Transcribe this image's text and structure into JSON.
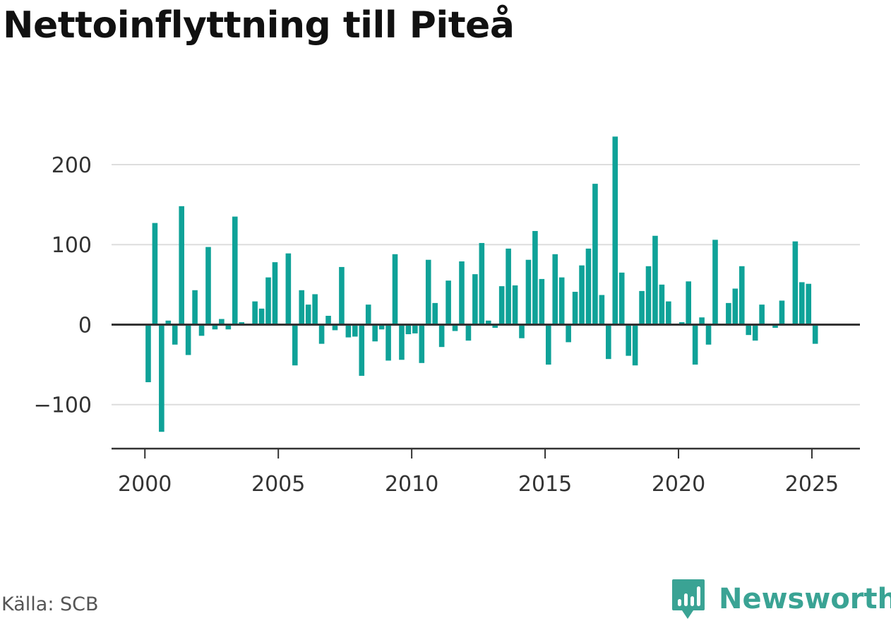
{
  "title": "Nettoinflyttning till Piteå",
  "source": "Källa: SCB",
  "brand": {
    "name": "Newsworthy",
    "logo_icon": "newsworthy-chart-logo-icon",
    "color": "#3aa394"
  },
  "colors": {
    "bar": "#0fa298",
    "grid": "#dddddd",
    "zero_line": "#333333",
    "axis": "#333333",
    "text": "#333333"
  },
  "chart_data": {
    "type": "bar",
    "title": "Nettoinflyttning till Piteå",
    "xlabel": "",
    "ylabel": "",
    "x_ticks": [
      2000,
      2005,
      2010,
      2015,
      2020,
      2025
    ],
    "x_tick_labels": [
      "2000",
      "2005",
      "2010",
      "2015",
      "2020",
      "2025"
    ],
    "y_ticks": [
      -100,
      0,
      100,
      200
    ],
    "y_tick_labels": [
      "−100",
      "0",
      "100",
      "200"
    ],
    "ylim": [
      -155,
      245
    ],
    "xlim": [
      1998.75,
      2026.8
    ],
    "grid": true,
    "legend": "none",
    "x": [
      2000.125,
      2000.375,
      2000.625,
      2000.875,
      2001.125,
      2001.375,
      2001.625,
      2001.875,
      2002.125,
      2002.375,
      2002.625,
      2002.875,
      2003.125,
      2003.375,
      2003.625,
      2003.875,
      2004.125,
      2004.375,
      2004.625,
      2004.875,
      2005.125,
      2005.375,
      2005.625,
      2005.875,
      2006.125,
      2006.375,
      2006.625,
      2006.875,
      2007.125,
      2007.375,
      2007.625,
      2007.875,
      2008.125,
      2008.375,
      2008.625,
      2008.875,
      2009.125,
      2009.375,
      2009.625,
      2009.875,
      2010.125,
      2010.375,
      2010.625,
      2010.875,
      2011.125,
      2011.375,
      2011.625,
      2011.875,
      2012.125,
      2012.375,
      2012.625,
      2012.875,
      2013.125,
      2013.375,
      2013.625,
      2013.875,
      2014.125,
      2014.375,
      2014.625,
      2014.875,
      2015.125,
      2015.375,
      2015.625,
      2015.875,
      2016.125,
      2016.375,
      2016.625,
      2016.875,
      2017.125,
      2017.375,
      2017.625,
      2017.875,
      2018.125,
      2018.375,
      2018.625,
      2018.875,
      2019.125,
      2019.375,
      2019.625,
      2019.875,
      2020.125,
      2020.375,
      2020.625,
      2020.875,
      2021.125,
      2021.375,
      2021.625,
      2021.875,
      2022.125,
      2022.375,
      2022.625,
      2022.875,
      2023.125,
      2023.375,
      2023.625,
      2023.875,
      2024.125,
      2024.375,
      2024.625,
      2024.875,
      2025.125
    ],
    "values": [
      -72,
      127,
      -134,
      5,
      -25,
      148,
      -38,
      43,
      -14,
      97,
      -6,
      7,
      -6,
      135,
      3,
      0,
      29,
      20,
      59,
      78,
      0,
      89,
      -51,
      43,
      25,
      38,
      -24,
      11,
      -7,
      72,
      -16,
      -15,
      -64,
      25,
      -21,
      -6,
      -45,
      88,
      -44,
      -12,
      -11,
      -48,
      81,
      27,
      -28,
      55,
      -8,
      79,
      -20,
      63,
      102,
      5,
      -4,
      48,
      95,
      49,
      -17,
      81,
      117,
      57,
      -50,
      88,
      59,
      -22,
      41,
      74,
      95,
      176,
      37,
      -43,
      235,
      65,
      -39,
      -51,
      42,
      73,
      111,
      50,
      29,
      0,
      3,
      54,
      -50,
      9,
      -25,
      106,
      0,
      27,
      45,
      73,
      -13,
      -20,
      25,
      0,
      -4,
      30,
      0,
      104,
      53,
      51,
      -24
    ]
  }
}
